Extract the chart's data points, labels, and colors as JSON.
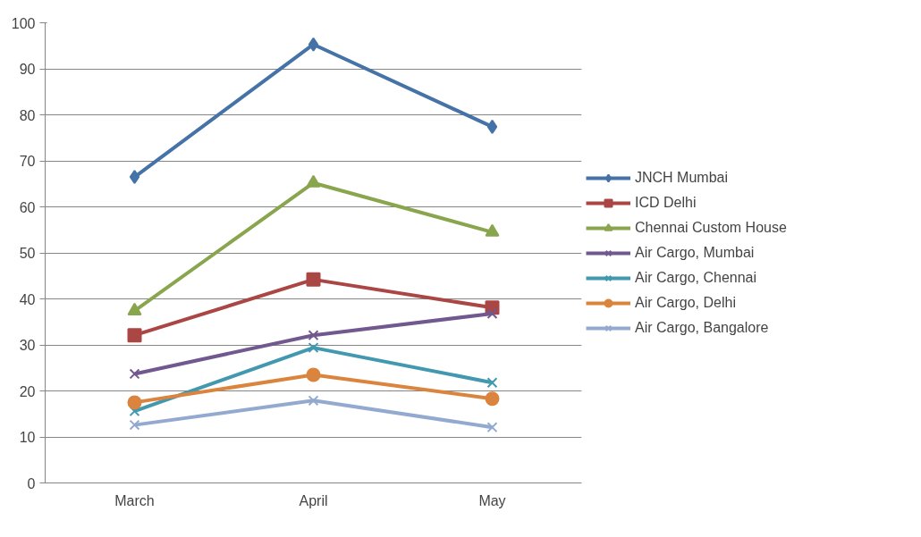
{
  "chart_data": {
    "type": "line",
    "categories": [
      "March",
      "April",
      "May"
    ],
    "series": [
      {
        "name": "JNCH Mumbai",
        "color": "#4572a7",
        "marker": "diamond",
        "values": [
          66.5,
          95.3,
          77.4
        ]
      },
      {
        "name": "ICD Delhi",
        "color": "#aa4643",
        "marker": "square",
        "values": [
          32.1,
          44.2,
          38.1
        ]
      },
      {
        "name": "Chennai Custom House",
        "color": "#89a54e",
        "marker": "triangle",
        "values": [
          37.4,
          65.2,
          54.5
        ]
      },
      {
        "name": "Air Cargo, Mumbai",
        "color": "#71588f",
        "marker": "cross",
        "values": [
          23.7,
          32.1,
          36.8
        ]
      },
      {
        "name": "Air Cargo, Chennai",
        "color": "#4198af",
        "marker": "cross",
        "values": [
          15.6,
          29.4,
          21.8
        ]
      },
      {
        "name": "Air Cargo, Delhi",
        "color": "#db843d",
        "marker": "circle",
        "values": [
          17.5,
          23.5,
          18.3
        ]
      },
      {
        "name": "Air Cargo, Bangalore",
        "color": "#93a9cf",
        "marker": "cross",
        "values": [
          12.6,
          17.9,
          12.1
        ]
      }
    ],
    "ylim": [
      0,
      100
    ],
    "yticks": [
      0,
      10,
      20,
      30,
      40,
      50,
      60,
      70,
      80,
      90,
      100
    ],
    "grid": "y",
    "legend": "right",
    "line_style": "solid"
  }
}
